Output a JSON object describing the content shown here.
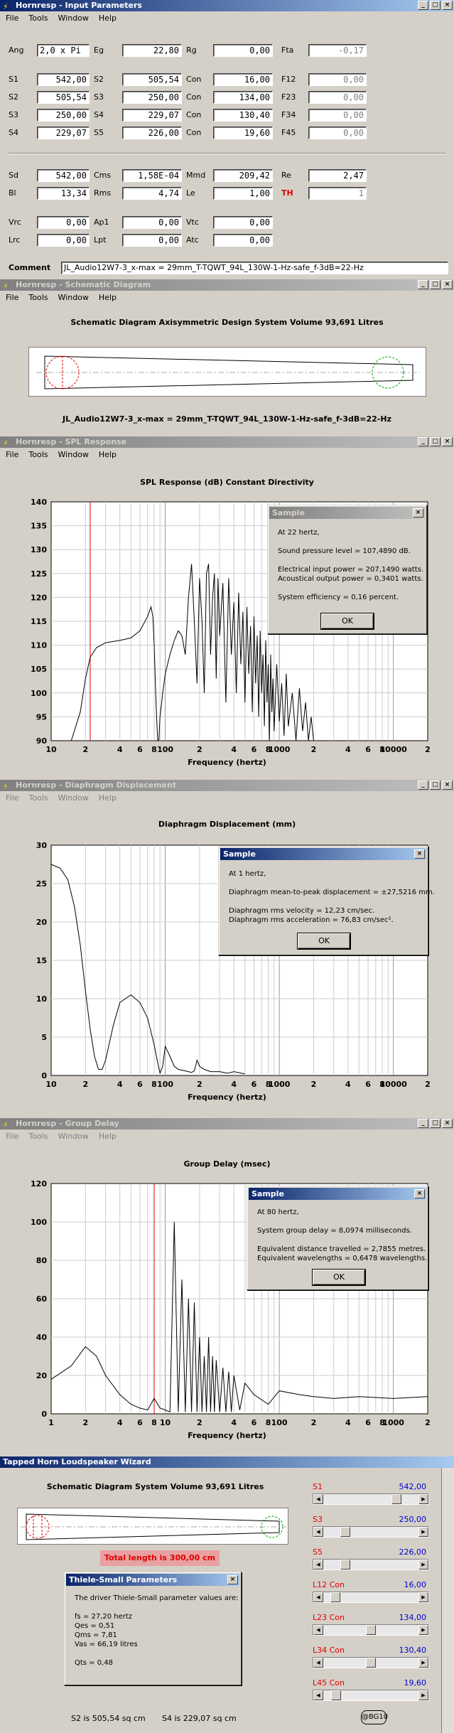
{
  "w1": {
    "title": "Hornresp - Input Parameters",
    "menu": [
      "File",
      "Tools",
      "Window",
      "Help"
    ],
    "rows": [
      [
        [
          "Ang",
          "2,0 x Pi",
          false,
          true
        ],
        [
          "Eg",
          "22,80",
          false
        ],
        [
          "Rg",
          "0,00",
          false
        ],
        [
          "Fta",
          "-0,17",
          true
        ]
      ],
      [
        [
          "S1",
          "542,00",
          false
        ],
        [
          "S2",
          "505,54",
          false
        ],
        [
          "Con",
          "16,00",
          false
        ],
        [
          "F12",
          "0,00",
          true
        ]
      ],
      [
        [
          "S2",
          "505,54",
          false
        ],
        [
          "S3",
          "250,00",
          false
        ],
        [
          "Con",
          "134,00",
          false
        ],
        [
          "F23",
          "0,00",
          true
        ]
      ],
      [
        [
          "S3",
          "250,00",
          false
        ],
        [
          "S4",
          "229,07",
          false
        ],
        [
          "Con",
          "130,40",
          false
        ],
        [
          "F34",
          "0,00",
          true
        ]
      ],
      [
        [
          "S4",
          "229,07",
          false
        ],
        [
          "S5",
          "226,00",
          false
        ],
        [
          "Con",
          "19,60",
          false
        ],
        [
          "F45",
          "0,00",
          true
        ]
      ],
      [
        [
          "Sd",
          "542,00",
          false
        ],
        [
          "Cms",
          "1,58E-04",
          false
        ],
        [
          "Mmd",
          "209,42",
          false
        ],
        [
          "Re",
          "2,47",
          false
        ]
      ],
      [
        [
          "Bl",
          "13,34",
          false
        ],
        [
          "Rms",
          "4,74",
          false
        ],
        [
          "Le",
          "1,00",
          false
        ],
        [
          "TH",
          "1",
          true
        ]
      ],
      [
        [
          "Vrc",
          "0,00",
          false
        ],
        [
          "Ap1",
          "0,00",
          false
        ],
        [
          "Vtc",
          "0,00",
          false
        ]
      ],
      [
        [
          "Lrc",
          "0,00",
          false
        ],
        [
          "Lpt",
          "0,00",
          false
        ],
        [
          "Atc",
          "0,00",
          false
        ]
      ]
    ],
    "comment_label": "Comment",
    "comment": "JL_Audio12W7-3_x-max = 29mm_T-TQWT_94L_130W-1-Hz-safe_f-3dB=22-Hz"
  },
  "w2": {
    "title": "Hornresp - Schematic Diagram",
    "menu": [
      "File",
      "Tools",
      "Window",
      "Help"
    ],
    "heading": "Schematic Diagram   Axisymmetric Design   System Volume 93,691 Litres",
    "caption": "JL_Audio12W7-3_x-max = 29mm_T-TQWT_94L_130W-1-Hz-safe_f-3dB=22-Hz"
  },
  "w3": {
    "title": "Hornresp - SPL Response",
    "menu": [
      "File",
      "Tools",
      "Window",
      "Help"
    ],
    "heading": "SPL Response (dB)   Constant Directivity",
    "xlabel": "Frequency (hertz)",
    "yticks": [
      "140",
      "135",
      "130",
      "125",
      "120",
      "115",
      "110",
      "105",
      "100",
      "95",
      "90"
    ],
    "xticks": [
      "10",
      "2",
      "4",
      "6",
      "8",
      "100",
      "2",
      "4",
      "6",
      "8",
      "1000",
      "2",
      "4",
      "6",
      "8",
      "10000",
      "2"
    ],
    "dlg": {
      "title": "Sample",
      "lines": [
        "At 22 hertz,",
        "Sound pressure level = 107,4890 dB.",
        "Electrical input power = 207,1490 watts.",
        "Acoustical output power = 0,3401 watts.",
        "System efficiency = 0,16 percent."
      ],
      "ok": "OK"
    }
  },
  "w4": {
    "title": "Hornresp - Diaphragm Displacement",
    "menu": [
      "File",
      "Tools",
      "Window",
      "Help"
    ],
    "heading": "Diaphragm Displacement (mm)",
    "xlabel": "Frequency (hertz)",
    "yticks": [
      "30",
      "25",
      "20",
      "15",
      "10",
      "5",
      "0"
    ],
    "xticks": [
      "10",
      "2",
      "4",
      "6",
      "8",
      "100",
      "2",
      "4",
      "6",
      "8",
      "1000",
      "2",
      "4",
      "6",
      "8",
      "10000",
      "2"
    ],
    "dlg": {
      "title": "Sample",
      "lines": [
        "At 1 hertz,",
        "Diaphragm mean-to-peak displacement = ±27,5216 mm.",
        "Diaphragm rms velocity = 12,23 cm/sec.",
        "Diaphragm rms acceleration = 76,83 cm/sec²."
      ],
      "ok": "OK"
    }
  },
  "w5": {
    "title": "Hornresp - Group Delay",
    "menu": [
      "File",
      "Tools",
      "Window",
      "Help"
    ],
    "heading": "Group Delay (msec)",
    "xlabel": "Frequency (hertz)",
    "yticks": [
      "120",
      "100",
      "80",
      "60",
      "40",
      "20",
      "0"
    ],
    "xticks": [
      "1",
      "2",
      "4",
      "6",
      "8",
      "10",
      "2",
      "4",
      "6",
      "8",
      "100",
      "2",
      "4",
      "6",
      "8",
      "1000",
      "2"
    ],
    "dlg": {
      "title": "Sample",
      "lines": [
        "At 80 hertz,",
        "System group delay = 8,0974 milliseconds.",
        "Equivalent distance travelled = 2,7855 metres.",
        "Equivalent wavelengths = 0,6478 wavelengths."
      ],
      "ok": "OK"
    }
  },
  "w6": {
    "title": "Tapped Horn Loudspeaker Wizard",
    "heading": "Schematic Diagram   System Volume 93,691 Litres",
    "total": "Total length is 300,00 cm",
    "ts": {
      "title": "Thiele-Small Parameters",
      "lines": [
        "The driver Thiele-Small parameter values are:",
        "fs = 27,20 hertz",
        "Qes = 0,51",
        "Qms = 7,81",
        "Vas = 66,19 litres",
        "Qts = 0,48"
      ]
    },
    "sliders": [
      [
        "S1",
        "542,00",
        0.8
      ],
      [
        "S3",
        "250,00",
        0.2
      ],
      [
        "S5",
        "226,00",
        0.2
      ],
      [
        "L12 Con",
        "16,00",
        0.08
      ],
      [
        "L23 Con",
        "134,00",
        0.5
      ],
      [
        "L34 Con",
        "130,40",
        0.5
      ],
      [
        "L45 Con",
        "19,60",
        0.09
      ]
    ],
    "footer": [
      "S2 is 505,54 sq cm",
      "S4 is 229,07 sq cm"
    ],
    "badge": "@BG10"
  },
  "chart_data": [
    {
      "type": "line",
      "title": "SPL Response (dB)   Constant Directivity",
      "xlabel": "Frequency (hertz)",
      "xscale": "log",
      "xlim": [
        10,
        20000
      ],
      "ylim": [
        90,
        140
      ],
      "marker_x": 22,
      "series": [
        {
          "x": [
            15,
            18,
            20,
            22,
            25,
            30,
            40,
            50,
            60,
            70,
            75,
            78,
            80,
            82,
            84,
            86,
            88,
            90,
            95,
            100,
            110,
            120,
            130,
            140,
            150,
            160,
            170,
            180,
            190,
            200,
            210,
            220,
            230,
            240,
            250,
            260,
            270,
            280,
            290,
            300,
            320,
            340,
            360,
            380,
            400,
            420,
            440,
            460,
            480,
            500,
            520,
            540,
            560,
            580,
            600,
            620,
            640,
            660,
            680,
            700,
            720,
            740,
            760,
            780,
            800,
            820,
            840,
            860,
            880,
            900,
            950,
            1000,
            1050,
            1100,
            1150,
            1200,
            1300,
            1400,
            1500,
            1600,
            1700,
            1800,
            1900,
            2000
          ],
          "y": [
            90,
            96,
            103,
            107.5,
            109.5,
            110.5,
            111,
            111.5,
            113,
            116,
            118,
            116,
            110,
            102,
            95,
            90,
            90,
            95,
            100,
            104,
            108,
            111,
            113,
            112,
            108,
            120,
            127,
            115,
            102,
            124,
            115,
            100,
            125,
            127,
            108,
            120,
            125,
            103,
            124,
            112,
            123,
            98,
            124,
            108,
            119,
            100,
            121,
            106,
            117,
            98,
            118,
            104,
            114,
            96,
            116,
            102,
            112,
            95,
            113,
            100,
            108,
            93,
            111,
            98,
            106,
            90,
            108,
            96,
            103,
            92,
            106,
            94,
            102,
            91,
            104,
            93,
            100,
            90,
            101,
            92,
            98,
            90,
            95,
            90
          ]
        }
      ]
    },
    {
      "type": "line",
      "title": "Diaphragm Displacement (mm)",
      "xlabel": "Frequency (hertz)",
      "xscale": "log",
      "xlim": [
        10,
        20000
      ],
      "ylim": [
        0,
        30
      ],
      "series": [
        {
          "x": [
            10,
            12,
            14,
            16,
            18,
            20,
            22,
            24,
            26,
            28,
            30,
            35,
            40,
            50,
            60,
            70,
            80,
            85,
            90,
            95,
            100,
            110,
            120,
            130,
            150,
            170,
            180,
            190,
            200,
            220,
            250,
            300,
            350,
            400,
            500
          ],
          "y": [
            27.5,
            27,
            25.5,
            22,
            17,
            11,
            6,
            2.5,
            0.8,
            0.8,
            2,
            6.5,
            9.5,
            10.5,
            9.5,
            7.5,
            4,
            2,
            0.3,
            1.2,
            3.8,
            2.5,
            1.2,
            0.8,
            0.6,
            0.4,
            0.6,
            2,
            1.2,
            0.8,
            0.5,
            0.5,
            0.3,
            0.5,
            0.2
          ]
        }
      ]
    },
    {
      "type": "line",
      "title": "Group Delay (msec)",
      "xlabel": "Frequency (hertz)",
      "xscale": "log",
      "xlim": [
        1,
        2000
      ],
      "ylim": [
        0,
        120
      ],
      "marker_x": 8,
      "series": [
        {
          "x": [
            1,
            1.5,
            2,
            2.5,
            3,
            4,
            5,
            6,
            7,
            8,
            9,
            10,
            11,
            12,
            13,
            14,
            15,
            16,
            17,
            18,
            19,
            20,
            21,
            22,
            23,
            24,
            25,
            26,
            27,
            28,
            30,
            32,
            34,
            36,
            38,
            40,
            45,
            50,
            60,
            80,
            100,
            150,
            200,
            300,
            500,
            1000,
            2000
          ],
          "y": [
            18,
            25,
            35,
            30,
            20,
            10,
            5,
            3,
            2,
            8,
            3,
            2,
            1,
            100,
            1,
            70,
            1,
            60,
            1,
            58,
            1,
            40,
            1,
            30,
            1,
            40,
            1,
            30,
            1,
            28,
            1,
            24,
            1,
            22,
            1,
            20,
            2,
            16,
            10,
            5,
            12,
            10,
            9,
            8,
            9,
            8,
            9
          ]
        }
      ]
    }
  ]
}
